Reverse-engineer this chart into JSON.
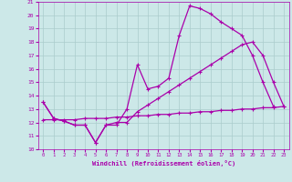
{
  "xlabel": "Windchill (Refroidissement éolien,°C)",
  "xlim": [
    -0.5,
    23.5
  ],
  "ylim": [
    10,
    21
  ],
  "xticks": [
    0,
    1,
    2,
    3,
    4,
    5,
    6,
    7,
    8,
    9,
    10,
    11,
    12,
    13,
    14,
    15,
    16,
    17,
    18,
    19,
    20,
    21,
    22,
    23
  ],
  "yticks": [
    10,
    11,
    12,
    13,
    14,
    15,
    16,
    17,
    18,
    19,
    20,
    21
  ],
  "bg_color": "#cce8e8",
  "grid_color": "#aacccc",
  "line_color": "#aa00aa",
  "line1_x": [
    0,
    1,
    2,
    3,
    4,
    5,
    6,
    7,
    8,
    9,
    10,
    11,
    12,
    13,
    14,
    15,
    16,
    17,
    18,
    19,
    20,
    21,
    22
  ],
  "line1_y": [
    13.5,
    12.3,
    12.1,
    11.8,
    11.8,
    10.5,
    11.8,
    11.8,
    13.0,
    16.3,
    14.5,
    14.7,
    15.3,
    18.5,
    20.7,
    20.5,
    20.1,
    19.5,
    19.0,
    18.5,
    17.0,
    15.0,
    13.2
  ],
  "line2_x": [
    0,
    1,
    2,
    3,
    4,
    5,
    6,
    7,
    8,
    9,
    10,
    11,
    12,
    13,
    14,
    15,
    16,
    17,
    18,
    19,
    20,
    21,
    22,
    23
  ],
  "line2_y": [
    13.5,
    12.3,
    12.1,
    11.8,
    11.8,
    10.5,
    11.8,
    12.0,
    12.0,
    12.8,
    13.3,
    13.8,
    14.3,
    14.8,
    15.3,
    15.8,
    16.3,
    16.8,
    17.3,
    17.8,
    18.0,
    17.0,
    15.0,
    13.2
  ],
  "line3_x": [
    0,
    1,
    2,
    3,
    4,
    5,
    6,
    7,
    8,
    9,
    10,
    11,
    12,
    13,
    14,
    15,
    16,
    17,
    18,
    19,
    20,
    21,
    22,
    23
  ],
  "line3_y": [
    12.2,
    12.2,
    12.2,
    12.2,
    12.3,
    12.3,
    12.3,
    12.4,
    12.4,
    12.5,
    12.5,
    12.6,
    12.6,
    12.7,
    12.7,
    12.8,
    12.8,
    12.9,
    12.9,
    13.0,
    13.0,
    13.1,
    13.1,
    13.2
  ]
}
